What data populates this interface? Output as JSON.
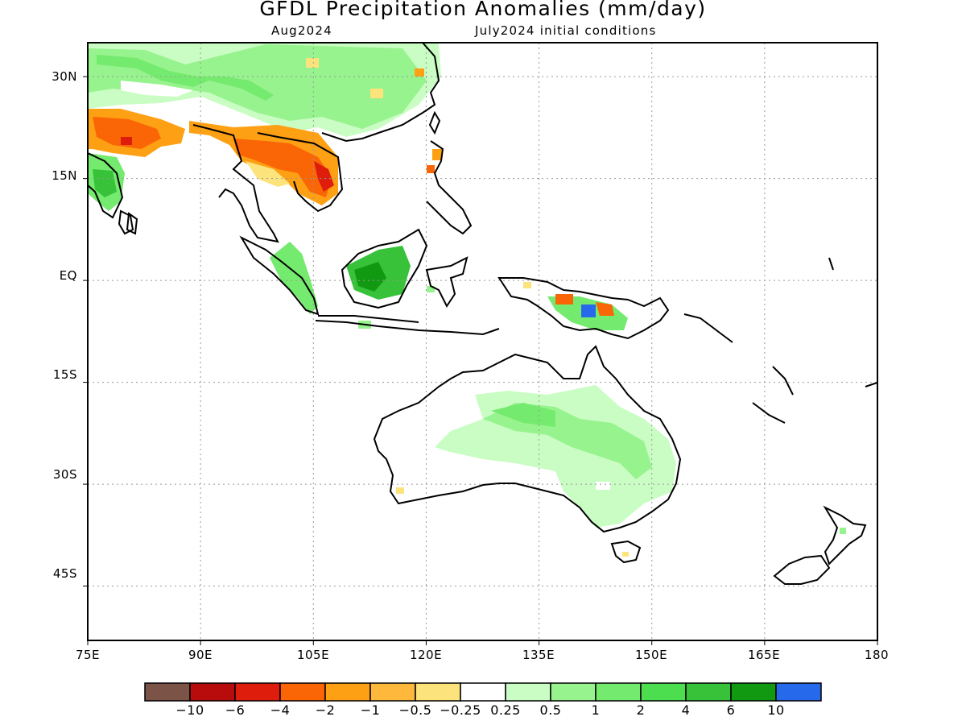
{
  "title": "GFDL Precipitation Anomalies (mm/day)",
  "subtitle_left": "Aug2024",
  "subtitle_right": "July2024 initial conditions",
  "lat_labels": [
    "30N",
    "15N",
    "EQ",
    "15S",
    "30S",
    "45S"
  ],
  "lon_labels": [
    "75E",
    "90E",
    "105E",
    "120E",
    "135E",
    "150E",
    "165E",
    "180"
  ],
  "colorbar": {
    "colors": [
      "#7b5347",
      "#b80b0b",
      "#de1d0c",
      "#fa6506",
      "#fea013",
      "#feb93c",
      "#fde37c",
      "#ffffff",
      "#c9fdc3",
      "#97f38e",
      "#74ea6e",
      "#4cde4f",
      "#37c23a",
      "#129912",
      "#2669ea"
    ],
    "labels": [
      "-10",
      "-6",
      "-4",
      "-2",
      "-1",
      "-0.5",
      "-0.25",
      "0.25",
      "0.5",
      "1",
      "2",
      "4",
      "6",
      "10"
    ]
  },
  "map_data": {
    "type": "choropleth",
    "region": "Indo-Pacific, Maritime Continent and Australia",
    "lon_range": [
      75,
      180
    ],
    "lat_range": [
      -53,
      35
    ],
    "colors": {
      "light_green": "#c9fdc3",
      "green": "#97f38e",
      "green_mid": "#74ea6e",
      "green_dark": "#37c23a",
      "green_deep": "#129912",
      "orange": "#fa6506",
      "orange_light": "#fea013",
      "yellow": "#fde37c",
      "red": "#de1d0c",
      "blue": "#2669ea"
    }
  }
}
